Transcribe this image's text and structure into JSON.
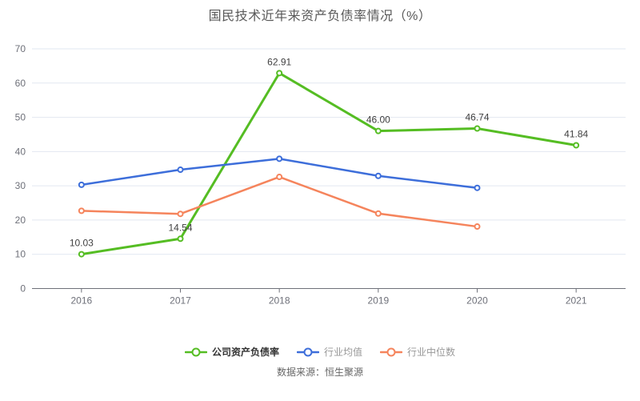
{
  "header": {
    "title": "国民技术近年来资产负债率情况（%）"
  },
  "footer": {
    "source": "数据来源：恒生聚源"
  },
  "chart_data": {
    "type": "line",
    "title": "国民技术近年来资产负债率情况（%）",
    "categories": [
      "2016",
      "2017",
      "2018",
      "2019",
      "2020",
      "2021"
    ],
    "series": [
      {
        "name": "公司资产负债率",
        "color": "#55BD23",
        "values": [
          10.03,
          14.54,
          62.91,
          46.0,
          46.74,
          41.84
        ],
        "labels": [
          "10.03",
          "14.54",
          "62.91",
          "46.00",
          "46.74",
          "41.84"
        ],
        "show_labels": true,
        "line_width": 3,
        "legend_text_color": "#333333",
        "legend_text_weight": "600"
      },
      {
        "name": "行业均值",
        "color": "#3D6EDA",
        "values": [
          30.3,
          34.7,
          37.9,
          32.9,
          29.4,
          null
        ],
        "labels": [],
        "show_labels": false,
        "line_width": 2.5,
        "legend_text_color": "#999999",
        "legend_text_weight": "400"
      },
      {
        "name": "行业中位数",
        "color": "#F5845C",
        "values": [
          22.7,
          21.8,
          32.6,
          21.9,
          18.1,
          null
        ],
        "labels": [],
        "show_labels": false,
        "line_width": 2.5,
        "legend_text_color": "#999999",
        "legend_text_weight": "400"
      }
    ],
    "xlabel": "",
    "ylabel": "",
    "ylim": [
      0,
      70
    ],
    "y_ticks": [
      0,
      10,
      20,
      30,
      40,
      50,
      60,
      70
    ],
    "grid": true,
    "legend_position": "bottom",
    "style": {
      "grid_color": "#E2E7F1",
      "axis_color": "#6E7079",
      "axis_text_color": "#6E7079",
      "data_label_color": "#404040",
      "marker_fill": "#ffffff"
    }
  }
}
